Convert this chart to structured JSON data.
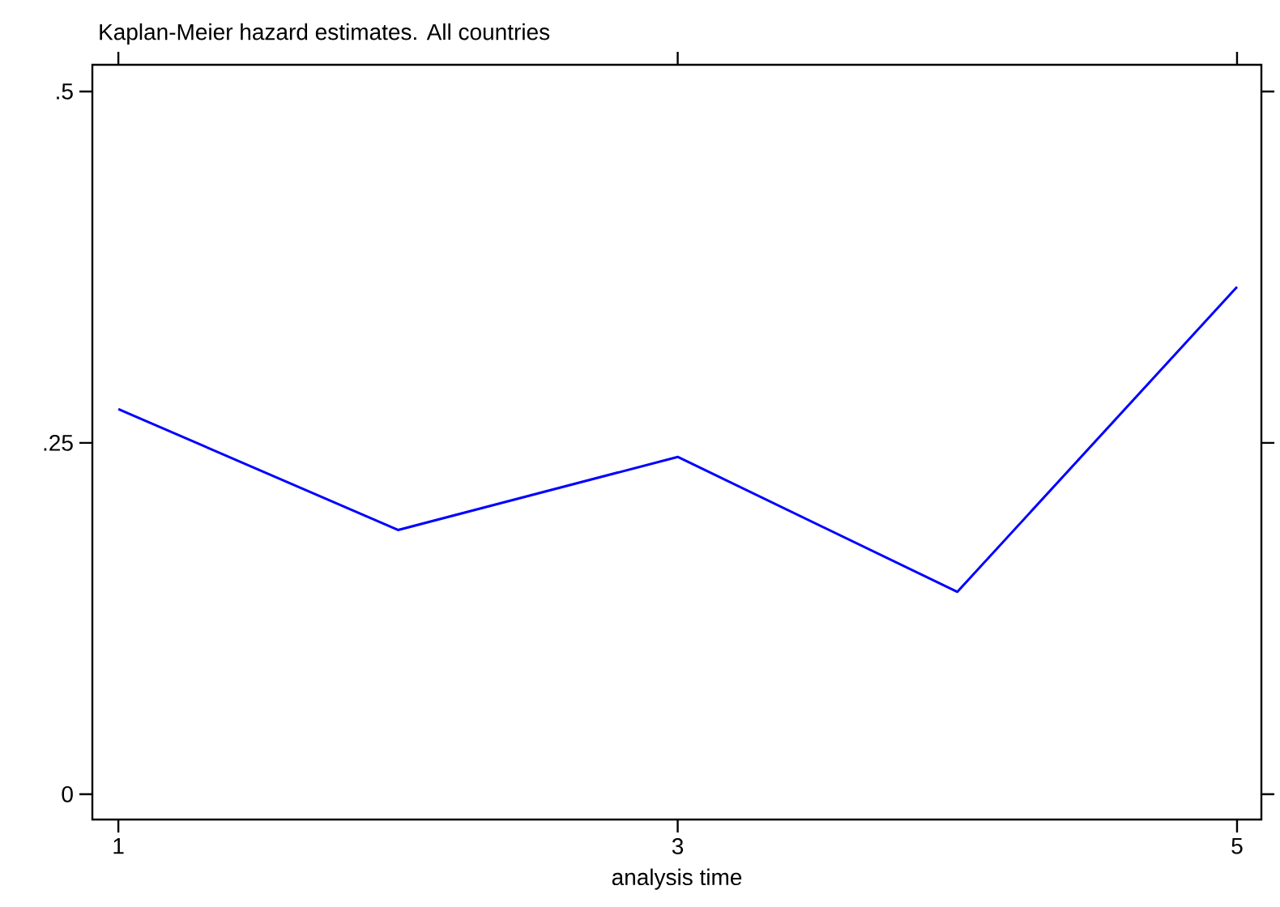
{
  "chart_data": {
    "type": "line",
    "title": "Kaplan-Meier hazard estimates. All countries",
    "xlabel": "analysis time",
    "x": [
      1,
      2,
      3,
      4,
      5
    ],
    "series": [
      {
        "color": "#0000ff",
        "values": [
          0.274,
          0.188,
          0.24,
          0.144,
          0.361
        ]
      }
    ],
    "xlim": [
      0.907,
      5.087
    ],
    "ylim": [
      -0.018,
      0.519
    ],
    "xticks": [
      1,
      3,
      5
    ],
    "yticks": [
      0,
      {
        "value": 0.25,
        "label": ".25"
      },
      {
        "value": 0.5,
        "label": ".5"
      }
    ]
  }
}
